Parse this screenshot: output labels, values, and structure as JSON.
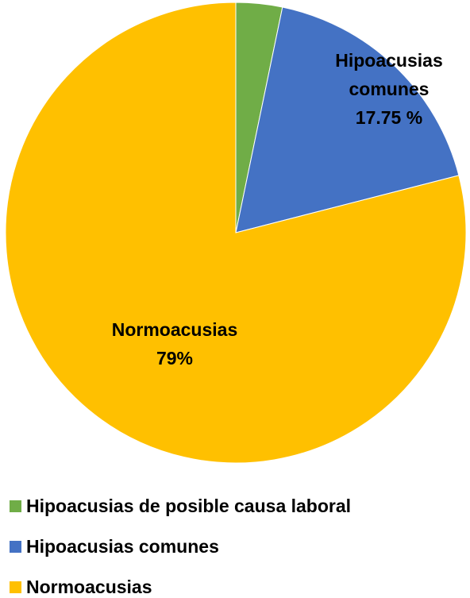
{
  "chart_data": {
    "type": "pie",
    "categories": [
      "Hipoacusias de posible causa laboral",
      "Hipoacusias comunes",
      "Normoacusias"
    ],
    "values": [
      3.25,
      17.75,
      79
    ],
    "value_labels": [
      null,
      "17.75 %",
      "79%"
    ],
    "colors": [
      "#70ad47",
      "#4472c4",
      "#ffc000"
    ],
    "legend": "bottom"
  }
}
